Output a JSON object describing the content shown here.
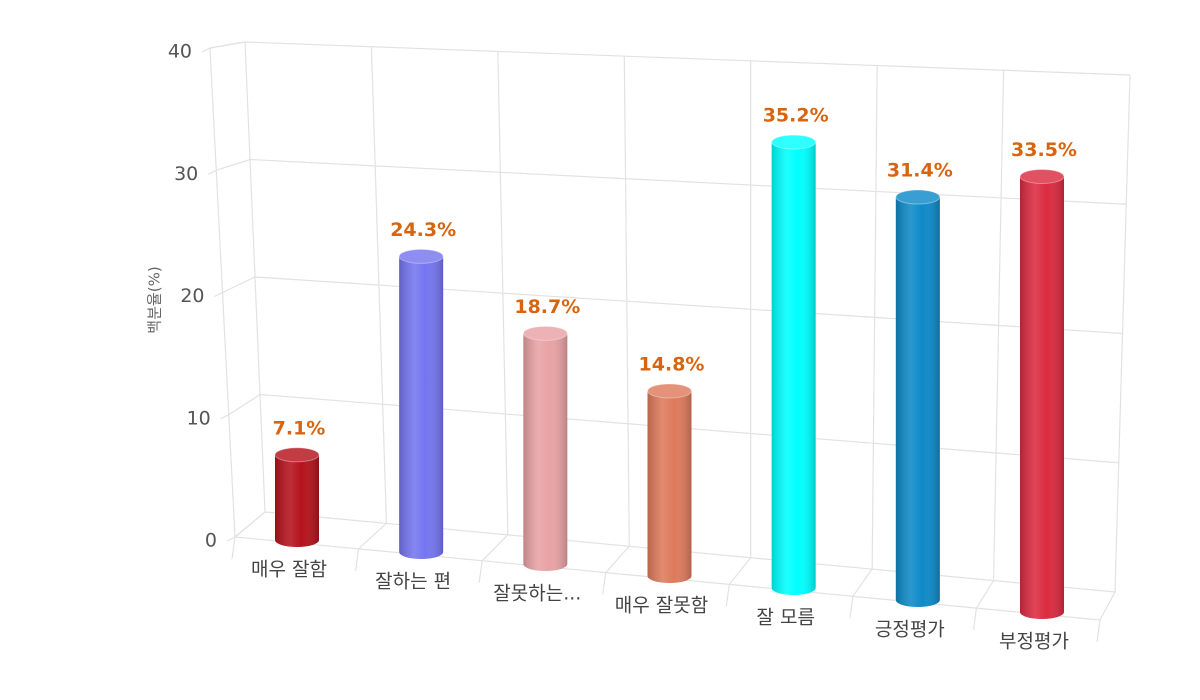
{
  "chart_data": {
    "type": "bar3d",
    "y_label": "백분율(%)",
    "categories": [
      "매우 잘함",
      "잘하는 편",
      "잘못하는...",
      "매우 잘못함",
      "잘 모름",
      "긍정평가",
      "부정평가"
    ],
    "values": [
      7.1,
      24.3,
      18.7,
      14.8,
      35.2,
      31.4,
      33.5
    ],
    "value_labels": [
      "7.1%",
      "24.3%",
      "18.7%",
      "14.8%",
      "35.2%",
      "31.4%",
      "33.5%"
    ],
    "colors": [
      "#b5121b",
      "#7575f0",
      "#e8a2a5",
      "#de7a5c",
      "#00ffff",
      "#0e8ac8",
      "#db2b40"
    ],
    "ylim": [
      0,
      40
    ],
    "yticks": [
      0,
      10,
      20,
      30,
      40
    ],
    "grid": true
  }
}
